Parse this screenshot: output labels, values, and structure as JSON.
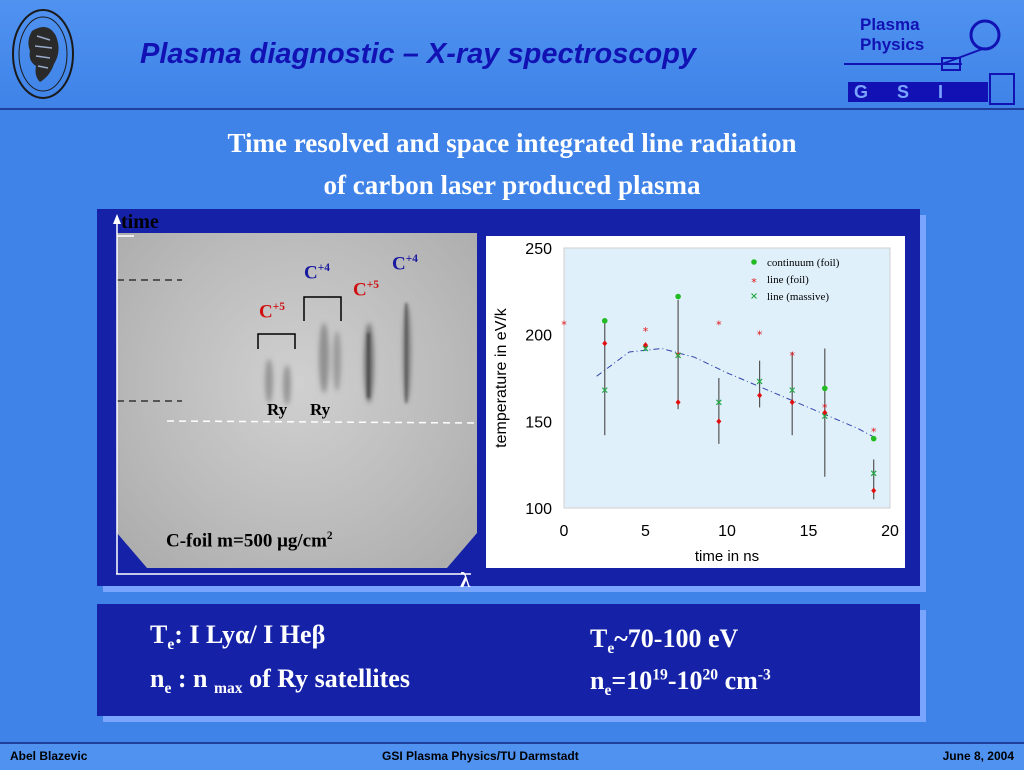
{
  "header": {
    "title": "Plasma diagnostic – X-ray spectroscopy",
    "logo": {
      "line1": "Plasma",
      "line2": "Physics",
      "gsi": "G S I"
    }
  },
  "subtitle": {
    "line1": "Time resolved and space integrated line radiation",
    "line2": "of  carbon laser produced plasma"
  },
  "spectrum": {
    "time_label": "time",
    "lambda_label": "λ",
    "labels": {
      "c5_left": "C",
      "c5_left_sup": "+5",
      "c4_left": "C",
      "c4_left_sup": "+4",
      "c5_right": "C",
      "c5_right_sup": "+5",
      "c4_right": "C",
      "c4_right_sup": "+4",
      "ry1": "Ry",
      "ry2": "Ry"
    },
    "caption": "C-foil m=500 μg/cm",
    "caption_sup": "2"
  },
  "chart_data": {
    "type": "scatter",
    "xlabel": "time in ns",
    "ylabel": "temperature in eV/k",
    "xlim": [
      0,
      20
    ],
    "ylim": [
      100,
      250
    ],
    "xticks": [
      "0",
      "5",
      "10",
      "15",
      "20"
    ],
    "yticks": [
      "250",
      "200",
      "150",
      "100"
    ],
    "legend_position": "top-right",
    "series": [
      {
        "name": "continuum (foil)",
        "color": "#22bb22",
        "marker": "circle",
        "x": [
          2.5,
          7,
          16,
          19
        ],
        "y": [
          208,
          222,
          169,
          140
        ]
      },
      {
        "name": "line (foil)",
        "color": "#e01010",
        "marker": "diamond",
        "x": [
          2.5,
          5,
          7,
          9.5,
          12,
          14,
          16,
          19
        ],
        "y": [
          195,
          194,
          161,
          150,
          165,
          161,
          155,
          110
        ]
      },
      {
        "name": "line (massive)",
        "color": "#22aa44",
        "marker": "x",
        "x": [
          2.5,
          5,
          7,
          9.5,
          12,
          14,
          16,
          19
        ],
        "y": [
          168,
          192,
          188,
          161,
          173,
          168,
          153,
          120
        ]
      }
    ],
    "extra_red_stars": {
      "x": [
        0,
        2.5,
        5,
        7,
        9.5,
        12,
        14,
        16,
        19
      ],
      "y": [
        206,
        207,
        202,
        188,
        206,
        200,
        188,
        158,
        144
      ]
    },
    "error_bars": {
      "x": [
        2.5,
        7,
        9.5,
        12,
        14,
        16,
        19
      ],
      "ymin": [
        142,
        157,
        137,
        158,
        142,
        118,
        105
      ],
      "ymax": [
        207,
        220,
        175,
        185,
        190,
        192,
        128
      ]
    },
    "fit_line": {
      "x": [
        2,
        4,
        6,
        8,
        10,
        12,
        14,
        16,
        18,
        19
      ],
      "y": [
        176,
        190,
        192,
        187,
        178,
        170,
        162,
        154,
        146,
        141
      ]
    }
  },
  "info": {
    "te_method": "T",
    "te_sub": "e",
    "te_rest": ":  I Lyα/ I Heβ",
    "ne_method": "n",
    "ne_sub": "e",
    "ne_rest1": " :  n ",
    "ne_max": "max",
    "ne_rest2": " of Ry satellites",
    "te_value_T": "T",
    "te_value_sub": "e",
    "te_value": "~70-100 eV",
    "ne_value_n": "n",
    "ne_value_sub": "e",
    "ne_value_a": "=10",
    "ne_value_sup1": "19",
    "ne_value_b": "-10",
    "ne_value_sup2": "20",
    "ne_value_c": " cm",
    "ne_value_sup3": "-3"
  },
  "footer": {
    "left": "Abel Blazevic",
    "center": "GSI Plasma Physics/TU Darmstadt",
    "right": "June 8,  2004"
  }
}
